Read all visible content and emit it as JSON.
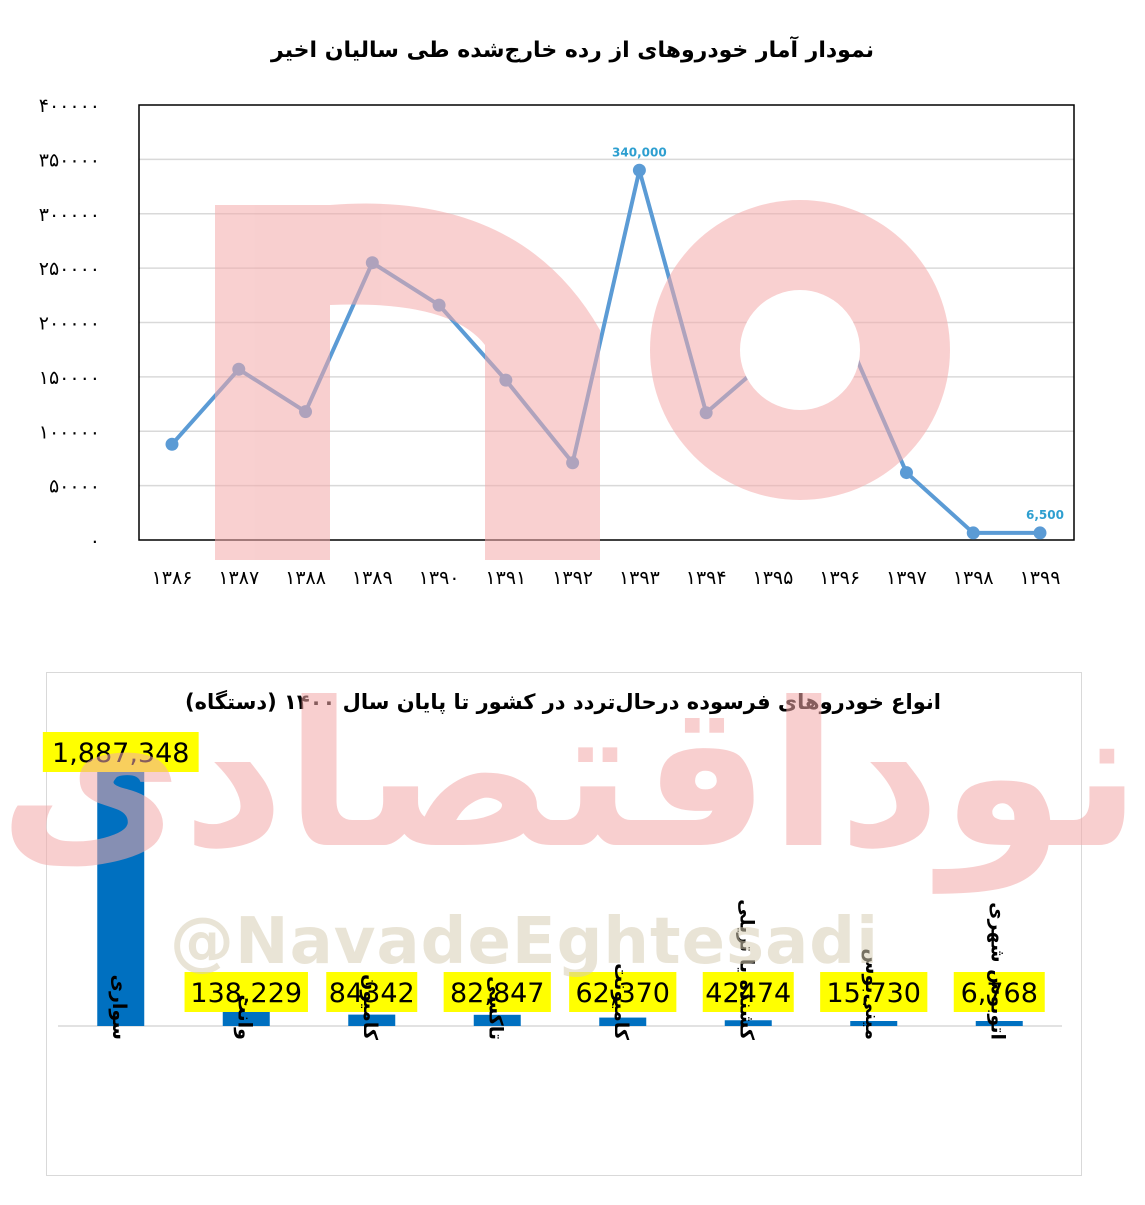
{
  "watermark": {
    "arabic_text": "نوداقتصادی",
    "handle": "@NavadeEghtesadi",
    "color": "#f4a9a9"
  },
  "chart_data": [
    {
      "type": "line",
      "title": "نمودار آمار خودروهای از رده خارج‌شده طی سالیان اخیر",
      "categories": [
        "۱۳۸۶",
        "۱۳۸۷",
        "۱۳۸۸",
        "۱۳۸۹",
        "۱۳۹۰",
        "۱۳۹۱",
        "۱۳۹۲",
        "۱۳۹۳",
        "۱۳۹۴",
        "۱۳۹۵",
        "۱۳۹۶",
        "۱۳۹۷",
        "۱۳۹۸",
        "۱۳۹۹"
      ],
      "values": [
        88000,
        157000,
        118000,
        255000,
        216000,
        147000,
        71000,
        340000,
        117000,
        170000,
        202000,
        62000,
        6500,
        6500
      ],
      "y_ticks": [
        "۰",
        "۵۰۰۰۰",
        "۱۰۰۰۰۰",
        "۱۵۰۰۰۰",
        "۲۰۰۰۰۰",
        "۲۵۰۰۰۰",
        "۳۰۰۰۰۰",
        "۳۵۰۰۰۰",
        "۴۰۰۰۰۰"
      ],
      "ylim": [
        0,
        400000
      ],
      "grid": true,
      "color": "#5b9bd5",
      "annotations": [
        {
          "index": 7,
          "label": "340,000"
        },
        {
          "index": 13,
          "label": "6,500"
        }
      ],
      "annotation_color": "#2e9fd0"
    },
    {
      "type": "bar",
      "title": "انواع خودروهای فرسوده درحال‌تردد در کشور تا پایان سال ۱۴۰۰ (دستگاه)",
      "categories": [
        "سواری",
        "وانت",
        "کامیون",
        "تاکسی",
        "کامیونت",
        "کشنده یا تریلی",
        "مینی‌بوس",
        "اتوبوس شهری"
      ],
      "values": [
        1887348,
        138229,
        84342,
        82847,
        62370,
        42474,
        15730,
        6768
      ],
      "value_labels": [
        "1,887,348",
        "138,229",
        "84342",
        "82,847",
        "62,370",
        "42474",
        "15,730",
        "6,768"
      ],
      "ylim": [
        0,
        1887348
      ],
      "color": "#0070c0",
      "label_highlight": "#ffff00"
    }
  ]
}
